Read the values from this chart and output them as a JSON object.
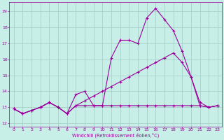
{
  "xlabel": "Windchill (Refroidissement éolien,°C)",
  "xlim": [
    -0.5,
    23.5
  ],
  "ylim": [
    11.8,
    19.6
  ],
  "yticks": [
    12,
    13,
    14,
    15,
    16,
    17,
    18,
    19
  ],
  "xticks": [
    0,
    1,
    2,
    3,
    4,
    5,
    6,
    7,
    8,
    9,
    10,
    11,
    12,
    13,
    14,
    15,
    16,
    17,
    18,
    19,
    20,
    21,
    22,
    23
  ],
  "background_color": "#c8eee8",
  "grid_color": "#a0ccc4",
  "line_color": "#990099",
  "series1_x": [
    0,
    1,
    2,
    3,
    4,
    5,
    6,
    7,
    8,
    9,
    10,
    11,
    12,
    13,
    14,
    15,
    16,
    17,
    18,
    19,
    20,
    21,
    22,
    23
  ],
  "series1_y": [
    12.9,
    12.6,
    12.8,
    13.0,
    13.3,
    13.0,
    12.6,
    13.8,
    14.0,
    13.1,
    13.1,
    16.1,
    17.2,
    17.2,
    17.0,
    18.6,
    19.2,
    18.5,
    17.8,
    16.5,
    14.9,
    13.1,
    13.0,
    13.1
  ],
  "series2_x": [
    0,
    1,
    2,
    3,
    4,
    5,
    6,
    7,
    8,
    9,
    10,
    11,
    12,
    13,
    14,
    15,
    16,
    17,
    18,
    19,
    20,
    21,
    22,
    23
  ],
  "series2_y": [
    12.9,
    12.6,
    12.8,
    13.0,
    13.3,
    13.0,
    12.6,
    13.1,
    13.1,
    13.1,
    13.1,
    13.1,
    13.1,
    13.1,
    13.1,
    13.1,
    13.1,
    13.1,
    13.1,
    13.1,
    13.1,
    13.1,
    13.0,
    13.1
  ],
  "series3_x": [
    0,
    1,
    2,
    3,
    4,
    5,
    6,
    7,
    8,
    9,
    10,
    11,
    12,
    13,
    14,
    15,
    16,
    17,
    18,
    19,
    20,
    21,
    22,
    23
  ],
  "series3_y": [
    12.9,
    12.6,
    12.8,
    13.0,
    13.3,
    13.0,
    12.6,
    13.1,
    13.4,
    13.7,
    14.0,
    14.3,
    14.6,
    14.9,
    15.2,
    15.5,
    15.8,
    16.1,
    16.4,
    15.8,
    14.9,
    13.3,
    13.0,
    13.1
  ]
}
